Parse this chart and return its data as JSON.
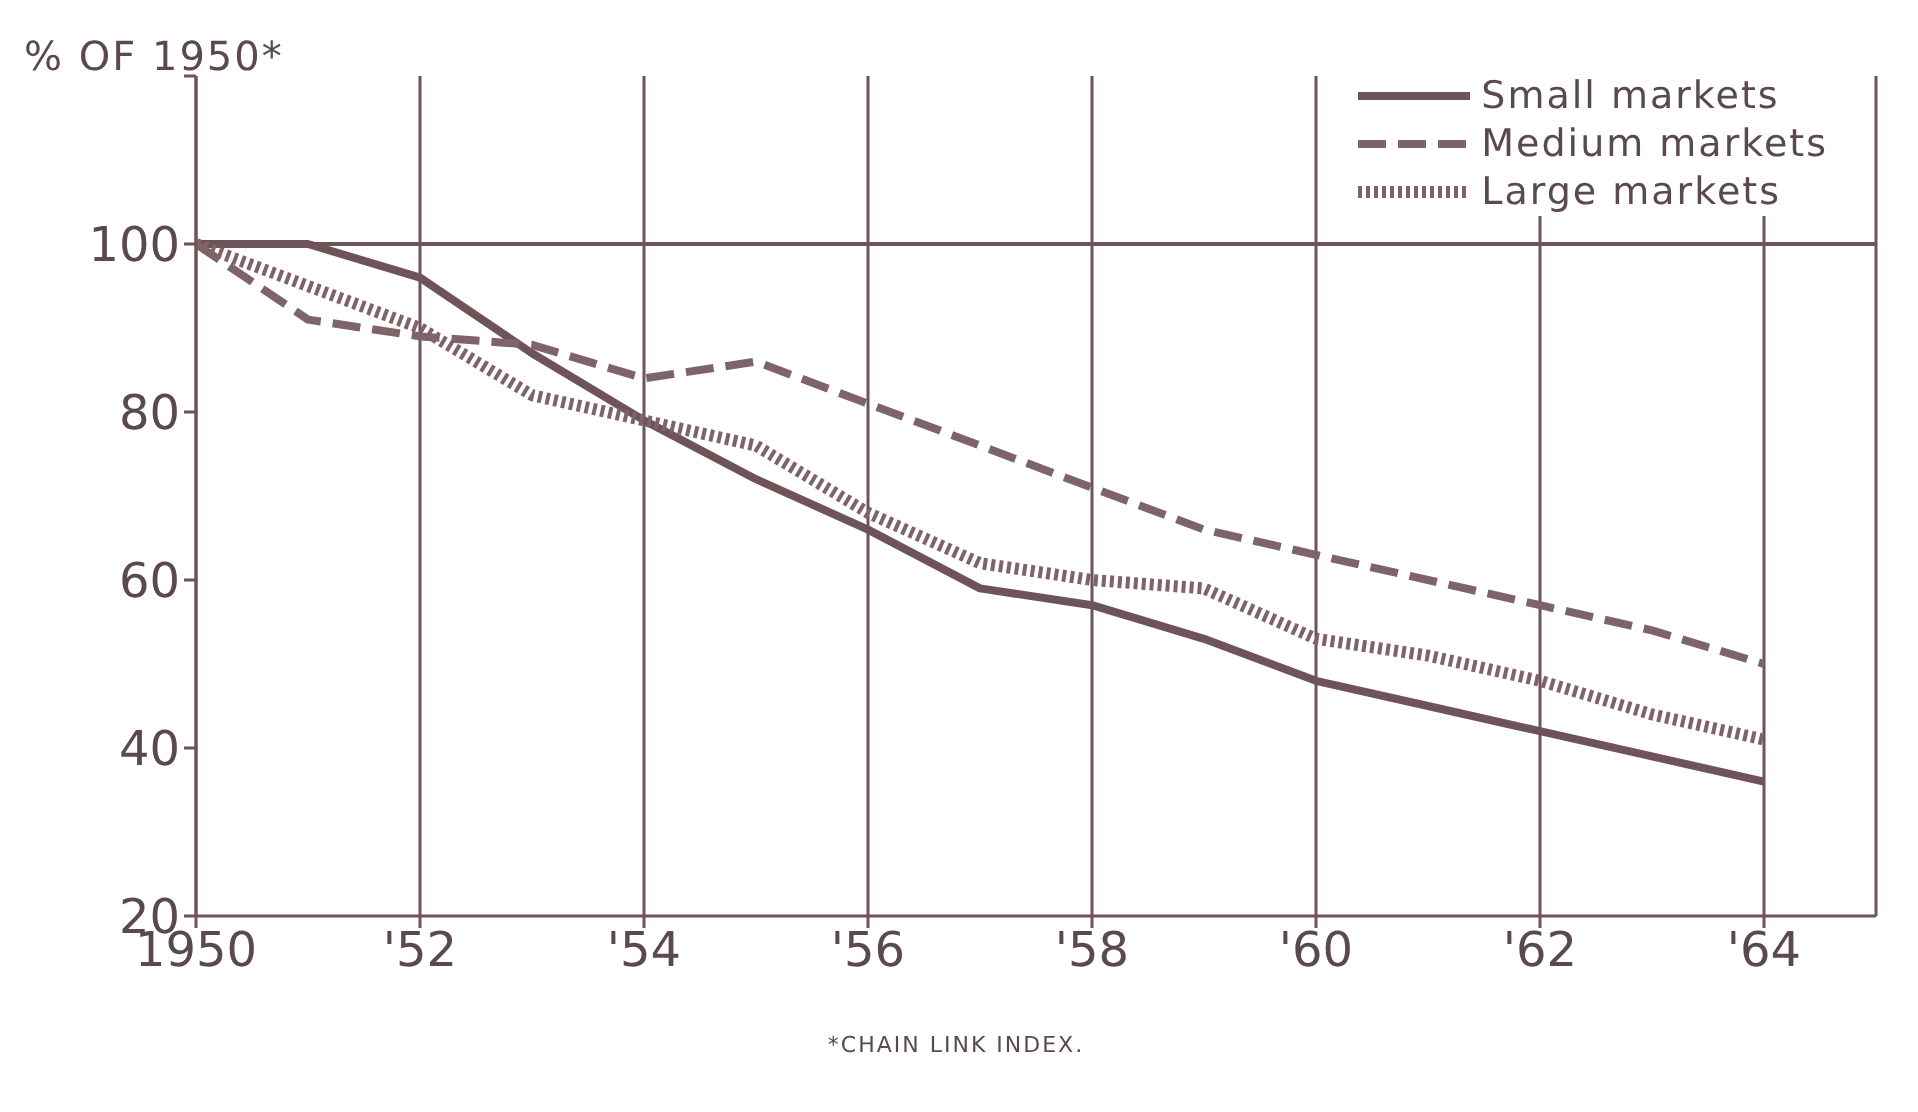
{
  "chart_data": {
    "type": "line",
    "ylabel": "% OF 1950*",
    "annotations": [
      "*CHAIN LINK INDEX."
    ],
    "x": [
      1950,
      1951,
      1952,
      1953,
      1954,
      1955,
      1956,
      1957,
      1958,
      1959,
      1960,
      1961,
      1962,
      1963,
      1964
    ],
    "series": [
      {
        "name": "Small markets",
        "color": "#6e5458",
        "line_style": "solid",
        "values": [
          100,
          100,
          96,
          87,
          79,
          72,
          66,
          59,
          57,
          53,
          48,
          45,
          42,
          39,
          36
        ]
      },
      {
        "name": "Medium markets",
        "color": "#7e6468",
        "line_style": "dashed",
        "values": [
          100,
          91,
          89,
          88,
          84,
          86,
          81,
          76,
          71,
          66,
          63,
          60,
          57,
          54,
          50
        ]
      },
      {
        "name": "Large markets",
        "color": "#7e6468",
        "line_style": "dotted",
        "values": [
          100,
          95,
          90,
          82,
          79,
          76,
          68,
          62,
          60,
          59,
          53,
          51,
          48,
          44,
          41
        ]
      }
    ],
    "xlim": [
      1950,
      1965
    ],
    "xticks": [
      {
        "value": 1950,
        "label": "1950"
      },
      {
        "value": 1952,
        "label": "'52"
      },
      {
        "value": 1954,
        "label": "'54"
      },
      {
        "value": 1956,
        "label": "'56"
      },
      {
        "value": 1958,
        "label": "'58"
      },
      {
        "value": 1960,
        "label": "'60"
      },
      {
        "value": 1962,
        "label": "'62"
      },
      {
        "value": 1964,
        "label": "'64"
      }
    ],
    "ylim": [
      20,
      120
    ],
    "yticks": [
      20,
      40,
      60,
      80,
      100,
      {
        "value": 120,
        "label": null
      }
    ],
    "ref_lines": [
      {
        "axis": "y",
        "value": 100,
        "label": null,
        "color": "#6e5458"
      }
    ],
    "grid": "x",
    "legend": "top right"
  }
}
